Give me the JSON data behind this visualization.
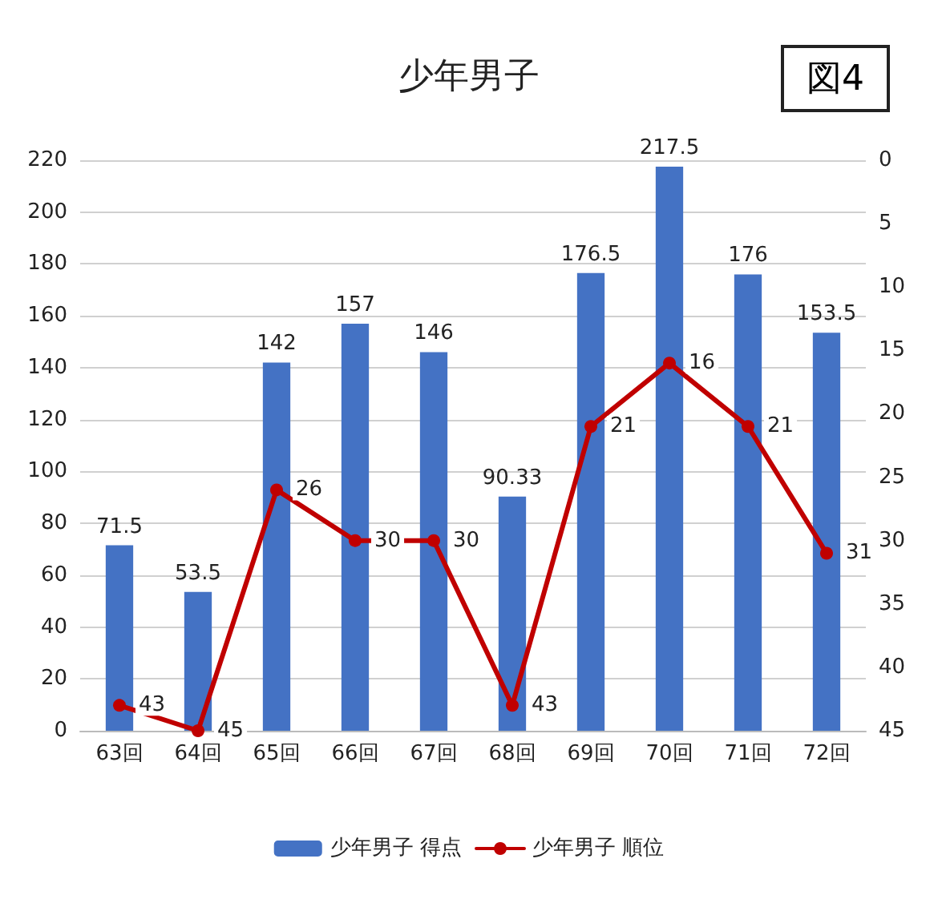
{
  "chart_data": {
    "type": "bar",
    "title": "少年男子",
    "categories": [
      "63回",
      "64回",
      "65回",
      "66回",
      "67回",
      "68回",
      "69回",
      "70回",
      "71回",
      "72回"
    ],
    "series": [
      {
        "name": "少年男子 得点",
        "color": "#4472c4",
        "values": [
          71.5,
          53.5,
          142,
          157,
          146,
          90.33,
          176.5,
          217.5,
          176,
          153.5
        ]
      },
      {
        "name": "少年男子 順位",
        "type": "line",
        "axis": "y2",
        "color": "#c00000",
        "values": [
          43,
          45,
          26,
          30,
          30,
          43,
          21,
          16,
          21,
          31
        ]
      }
    ],
    "ylim": [
      0,
      220
    ],
    "yticks": [
      0,
      20,
      40,
      60,
      80,
      100,
      120,
      140,
      160,
      180,
      200,
      220
    ],
    "y2lim": [
      45,
      0
    ],
    "y2ticks": [
      0,
      5,
      10,
      15,
      20,
      25,
      30,
      35,
      40,
      45
    ],
    "annotations": [
      "図4"
    ],
    "data_labels": true,
    "grid": "y",
    "legend": "bottom",
    "marker": "circle",
    "line_style": "solid"
  }
}
